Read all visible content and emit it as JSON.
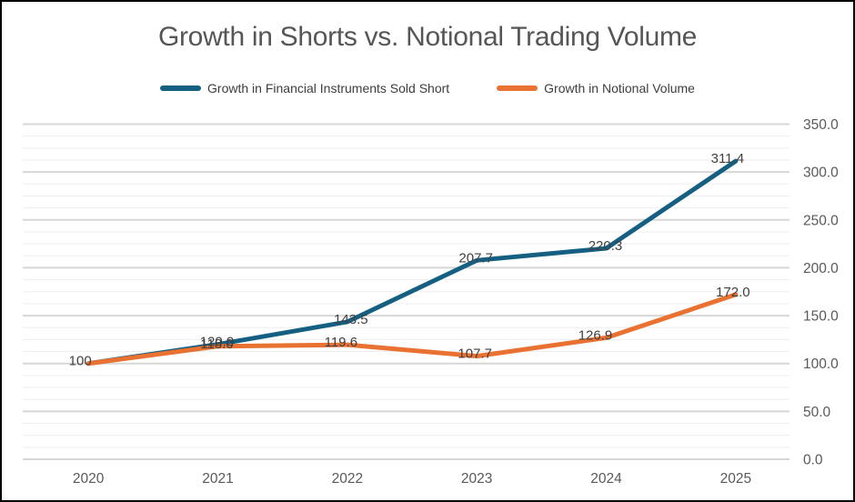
{
  "chart_data": {
    "type": "line",
    "title": "Growth in Shorts vs. Notional Trading Volume",
    "categories": [
      "2020",
      "2021",
      "2022",
      "2023",
      "2024",
      "2025"
    ],
    "series": [
      {
        "name": "Growth in Financial Instruments Sold Short",
        "color": "#156082",
        "values": [
          100,
          120.0,
          143.5,
          207.7,
          220.3,
          311.4
        ],
        "point_labels": [
          "100",
          "120.0",
          "143.5",
          "207.7",
          "220.3",
          "311.4"
        ]
      },
      {
        "name": "Growth in Notional Volume",
        "color": "#E97132",
        "values": [
          100,
          118.0,
          119.6,
          107.7,
          126.9,
          172.0
        ],
        "point_labels": [
          "",
          "118.0",
          "119.6",
          "107.7",
          "126.9",
          "172.0"
        ]
      }
    ],
    "xlabel": "",
    "ylabel": "",
    "ylim": [
      0,
      350
    ],
    "y_major_step": 50,
    "y_minor_step": 12.5,
    "y_tick_labels": [
      "0.0",
      "50.0",
      "100.0",
      "150.0",
      "200.0",
      "250.0",
      "300.0",
      "350.0"
    ],
    "y_axis_side": "right",
    "grid": "on",
    "legend_position": "top",
    "colors": {
      "title_text": "#565656",
      "legend_text": "#3d3d3d",
      "axis_text": "#595959",
      "data_label_text": "#404040",
      "major_gridline": "#d7d7d7",
      "minor_gridline": "#eeeeee",
      "background": "#ffffff",
      "frame_border": "#000000"
    }
  }
}
